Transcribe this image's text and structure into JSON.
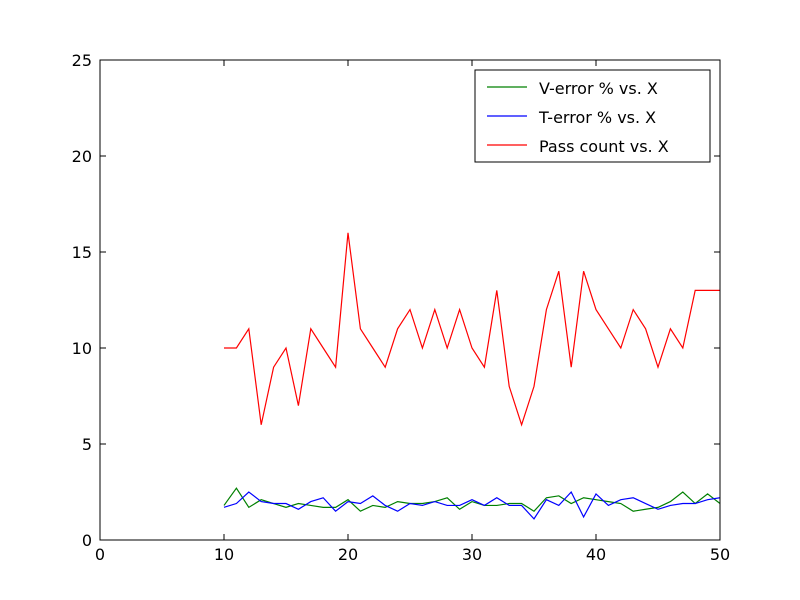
{
  "chart_data": {
    "type": "line",
    "title": "",
    "xlabel": "",
    "ylabel": "",
    "xlim": [
      0,
      50
    ],
    "ylim": [
      0,
      25
    ],
    "xticks": [
      0,
      10,
      20,
      30,
      40,
      50
    ],
    "yticks": [
      0,
      5,
      10,
      15,
      20,
      25
    ],
    "grid": false,
    "legend_position": "top-right",
    "x": [
      10,
      11,
      12,
      13,
      14,
      15,
      16,
      17,
      18,
      19,
      20,
      21,
      22,
      23,
      24,
      25,
      26,
      27,
      28,
      29,
      30,
      31,
      32,
      33,
      34,
      35,
      36,
      37,
      38,
      39,
      40,
      41,
      42,
      43,
      44,
      45,
      46,
      47,
      48,
      49,
      50
    ],
    "series": [
      {
        "name": "V-error % vs. X",
        "color": "#008000",
        "values": [
          1.8,
          2.7,
          1.7,
          2.1,
          1.9,
          1.7,
          1.9,
          1.8,
          1.7,
          1.7,
          2.1,
          1.5,
          1.8,
          1.7,
          2.0,
          1.9,
          1.9,
          2.0,
          2.2,
          1.6,
          2.0,
          1.8,
          1.8,
          1.9,
          1.9,
          1.5,
          2.2,
          2.3,
          1.9,
          2.2,
          2.1,
          2.0,
          1.9,
          1.5,
          1.6,
          1.7,
          2.0,
          2.5,
          1.9,
          2.4,
          1.9
        ]
      },
      {
        "name": "T-error % vs. X",
        "color": "#0000ff",
        "values": [
          1.7,
          1.9,
          2.5,
          2.0,
          1.9,
          1.9,
          1.6,
          2.0,
          2.2,
          1.5,
          2.0,
          1.9,
          2.3,
          1.8,
          1.5,
          1.9,
          1.8,
          2.0,
          1.8,
          1.8,
          2.1,
          1.8,
          2.2,
          1.8,
          1.8,
          1.1,
          2.1,
          1.8,
          2.5,
          1.2,
          2.4,
          1.8,
          2.1,
          2.2,
          1.9,
          1.6,
          1.8,
          1.9,
          1.9,
          2.1,
          2.2
        ]
      },
      {
        "name": "Pass count vs. X",
        "color": "#ff0000",
        "values": [
          10,
          10,
          11,
          6,
          9,
          10,
          7,
          11,
          10,
          9,
          16,
          11,
          10,
          9,
          11,
          12,
          10,
          12,
          10,
          12,
          10,
          9,
          13,
          8,
          6,
          8,
          12,
          14,
          9,
          14,
          12,
          11,
          10,
          12,
          11,
          9,
          11,
          10,
          13,
          13,
          13
        ]
      }
    ]
  }
}
